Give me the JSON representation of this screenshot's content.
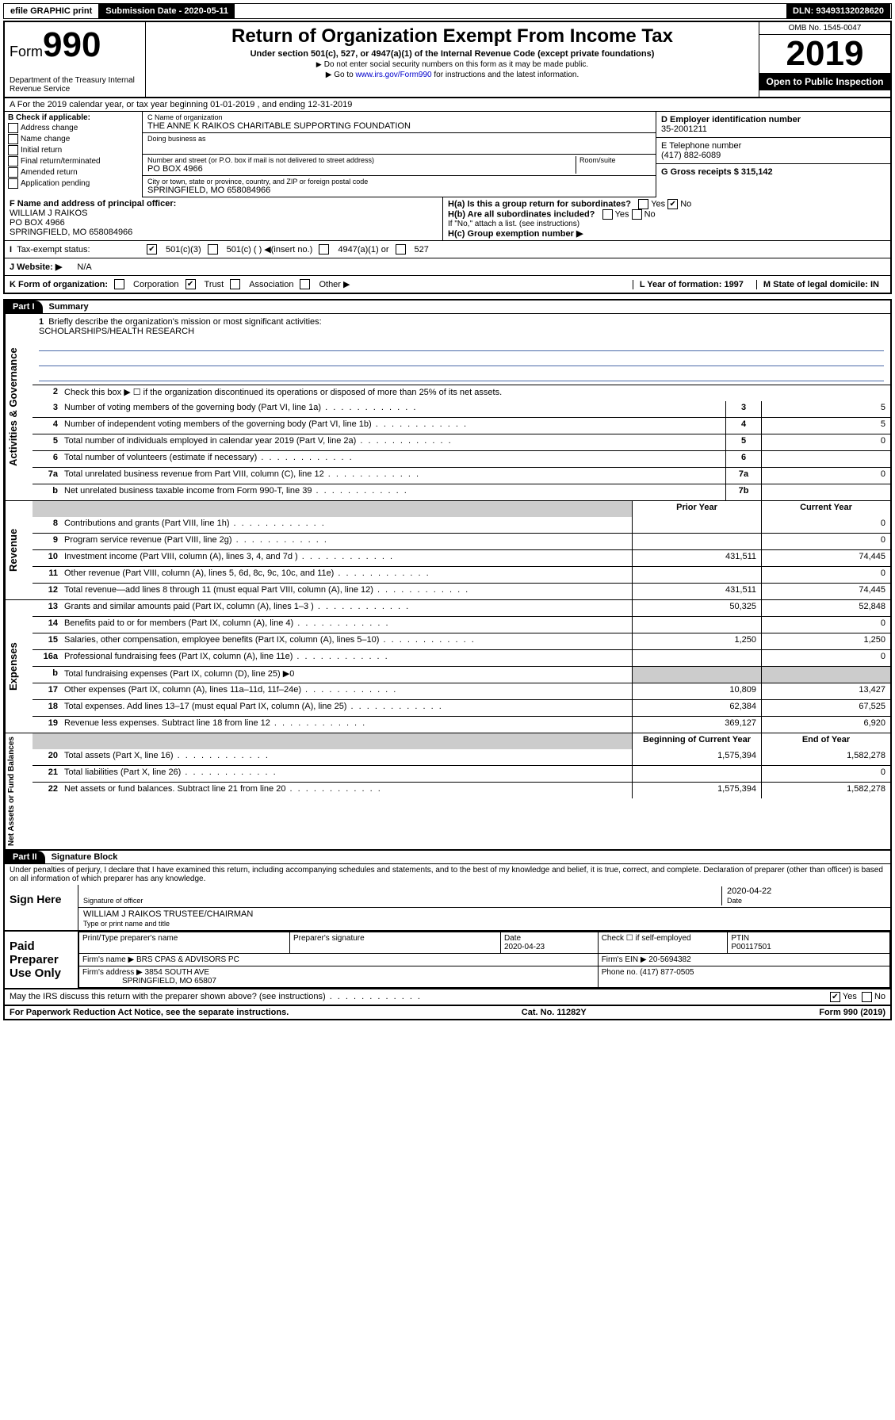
{
  "topbar": {
    "efile": "efile GRAPHIC print",
    "submission_label": "Submission Date - 2020-05-11",
    "dln_label": "DLN: 93493132028620"
  },
  "header": {
    "form_word": "Form",
    "form_num": "990",
    "dept": "Department of the Treasury Internal Revenue Service",
    "title": "Return of Organization Exempt From Income Tax",
    "subtitle": "Under section 501(c), 527, or 4947(a)(1) of the Internal Revenue Code (except private foundations)",
    "note1": "Do not enter social security numbers on this form as it may be made public.",
    "note2_pre": "Go to ",
    "note2_link": "www.irs.gov/Form990",
    "note2_post": " for instructions and the latest information.",
    "omb": "OMB No. 1545-0047",
    "year": "2019",
    "open": "Open to Public Inspection"
  },
  "rowA": "A For the 2019 calendar year, or tax year beginning 01-01-2019   , and ending 12-31-2019",
  "boxB": {
    "title": "B Check if applicable:",
    "items": [
      "Address change",
      "Name change",
      "Initial return",
      "Final return/terminated",
      "Amended return",
      "Application pending"
    ]
  },
  "boxC": {
    "name_label": "C Name of organization",
    "name": "THE ANNE K RAIKOS CHARITABLE SUPPORTING FOUNDATION",
    "dba_label": "Doing business as",
    "addr_label": "Number and street (or P.O. box if mail is not delivered to street address)",
    "room_label": "Room/suite",
    "addr": "PO BOX 4966",
    "city_label": "City or town, state or province, country, and ZIP or foreign postal code",
    "city": "SPRINGFIELD, MO  658084966"
  },
  "boxD": {
    "label": "D Employer identification number",
    "val": "35-2001211"
  },
  "boxE": {
    "label": "E Telephone number",
    "val": "(417) 882-6089"
  },
  "boxG": {
    "label": "G Gross receipts $ 315,142"
  },
  "boxF": {
    "label": "F Name and address of principal officer:",
    "name": "WILLIAM J RAIKOS",
    "addr": "PO BOX 4966",
    "city": "SPRINGFIELD, MO  658084966"
  },
  "boxH": {
    "a": "H(a)  Is this a group return for subordinates?",
    "b": "H(b)  Are all subordinates included?",
    "note": "If \"No,\" attach a list. (see instructions)",
    "c": "H(c)  Group exemption number ▶"
  },
  "taxexempt": {
    "label": "Tax-exempt status:",
    "opt1": "501(c)(3)",
    "opt2": "501(c) (  ) ◀(insert no.)",
    "opt3": "4947(a)(1) or",
    "opt4": "527"
  },
  "boxJ": {
    "label": "J   Website: ▶",
    "val": "N/A"
  },
  "boxK": {
    "label": "K Form of organization:",
    "opts": [
      "Corporation",
      "Trust",
      "Association",
      "Other ▶"
    ]
  },
  "boxL": {
    "label": "L Year of formation: 1997"
  },
  "boxM": {
    "label": "M State of legal domicile: IN"
  },
  "part1": {
    "tag": "Part I",
    "title": "Summary",
    "line1": "Briefly describe the organization's mission or most significant activities:",
    "mission": "SCHOLARSHIPS/HEALTH RESEARCH",
    "line2": "Check this box ▶ ☐  if the organization discontinued its operations or disposed of more than 25% of its net assets.",
    "sideA": "Activities & Governance",
    "sideR": "Revenue",
    "sideE": "Expenses",
    "sideN": "Net Assets or Fund Balances",
    "header_prior": "Prior Year",
    "header_curr": "Current Year",
    "header_beg": "Beginning of Current Year",
    "header_end": "End of Year",
    "rows_gov": [
      {
        "n": "3",
        "t": "Number of voting members of the governing body (Part VI, line 1a)",
        "k": "3",
        "v": "5"
      },
      {
        "n": "4",
        "t": "Number of independent voting members of the governing body (Part VI, line 1b)",
        "k": "4",
        "v": "5"
      },
      {
        "n": "5",
        "t": "Total number of individuals employed in calendar year 2019 (Part V, line 2a)",
        "k": "5",
        "v": "0"
      },
      {
        "n": "6",
        "t": "Total number of volunteers (estimate if necessary)",
        "k": "6",
        "v": ""
      },
      {
        "n": "7a",
        "t": "Total unrelated business revenue from Part VIII, column (C), line 12",
        "k": "7a",
        "v": "0"
      },
      {
        "n": "b",
        "t": "Net unrelated business taxable income from Form 990-T, line 39",
        "k": "7b",
        "v": ""
      }
    ],
    "rows_rev": [
      {
        "n": "8",
        "t": "Contributions and grants (Part VIII, line 1h)",
        "p": "",
        "c": "0"
      },
      {
        "n": "9",
        "t": "Program service revenue (Part VIII, line 2g)",
        "p": "",
        "c": "0"
      },
      {
        "n": "10",
        "t": "Investment income (Part VIII, column (A), lines 3, 4, and 7d )",
        "p": "431,511",
        "c": "74,445"
      },
      {
        "n": "11",
        "t": "Other revenue (Part VIII, column (A), lines 5, 6d, 8c, 9c, 10c, and 11e)",
        "p": "",
        "c": "0"
      },
      {
        "n": "12",
        "t": "Total revenue—add lines 8 through 11 (must equal Part VIII, column (A), line 12)",
        "p": "431,511",
        "c": "74,445"
      }
    ],
    "rows_exp": [
      {
        "n": "13",
        "t": "Grants and similar amounts paid (Part IX, column (A), lines 1–3 )",
        "p": "50,325",
        "c": "52,848"
      },
      {
        "n": "14",
        "t": "Benefits paid to or for members (Part IX, column (A), line 4)",
        "p": "",
        "c": "0"
      },
      {
        "n": "15",
        "t": "Salaries, other compensation, employee benefits (Part IX, column (A), lines 5–10)",
        "p": "1,250",
        "c": "1,250"
      },
      {
        "n": "16a",
        "t": "Professional fundraising fees (Part IX, column (A), line 11e)",
        "p": "",
        "c": "0"
      },
      {
        "n": "b",
        "t": "Total fundraising expenses (Part IX, column (D), line 25) ▶0",
        "p": null,
        "c": null
      },
      {
        "n": "17",
        "t": "Other expenses (Part IX, column (A), lines 11a–11d, 11f–24e)",
        "p": "10,809",
        "c": "13,427"
      },
      {
        "n": "18",
        "t": "Total expenses. Add lines 13–17 (must equal Part IX, column (A), line 25)",
        "p": "62,384",
        "c": "67,525"
      },
      {
        "n": "19",
        "t": "Revenue less expenses. Subtract line 18 from line 12",
        "p": "369,127",
        "c": "6,920"
      }
    ],
    "rows_net": [
      {
        "n": "20",
        "t": "Total assets (Part X, line 16)",
        "p": "1,575,394",
        "c": "1,582,278"
      },
      {
        "n": "21",
        "t": "Total liabilities (Part X, line 26)",
        "p": "",
        "c": "0"
      },
      {
        "n": "22",
        "t": "Net assets or fund balances. Subtract line 21 from line 20",
        "p": "1,575,394",
        "c": "1,582,278"
      }
    ]
  },
  "part2": {
    "tag": "Part II",
    "title": "Signature Block",
    "jurat": "Under penalties of perjury, I declare that I have examined this return, including accompanying schedules and statements, and to the best of my knowledge and belief, it is true, correct, and complete. Declaration of preparer (other than officer) is based on all information of which preparer has any knowledge.",
    "sign_here": "Sign Here",
    "sig_officer": "Signature of officer",
    "sig_date": "2020-04-22",
    "sig_date_label": "Date",
    "officer_name": "WILLIAM J RAIKOS  TRUSTEE/CHAIRMAN",
    "officer_label": "Type or print name and title",
    "paid": "Paid Preparer Use Only",
    "h_name": "Print/Type preparer's name",
    "h_sig": "Preparer's signature",
    "h_date": "Date",
    "date2": "2020-04-23",
    "check_self": "Check ☐ if self-employed",
    "ptin_label": "PTIN",
    "ptin": "P00117501",
    "firm_label": "Firm's name    ▶",
    "firm": "BRS CPAS & ADVISORS PC",
    "ein_label": "Firm's EIN ▶",
    "ein": "20-5694382",
    "addr_label": "Firm's address ▶",
    "addr1": "3854 SOUTH AVE",
    "addr2": "SPRINGFIELD, MO  65807",
    "phone_label": "Phone no.",
    "phone": "(417) 877-0505",
    "discuss": "May the IRS discuss this return with the preparer shown above? (see instructions)"
  },
  "footer": {
    "left": "For Paperwork Reduction Act Notice, see the separate instructions.",
    "mid": "Cat. No. 11282Y",
    "right": "Form 990 (2019)"
  }
}
